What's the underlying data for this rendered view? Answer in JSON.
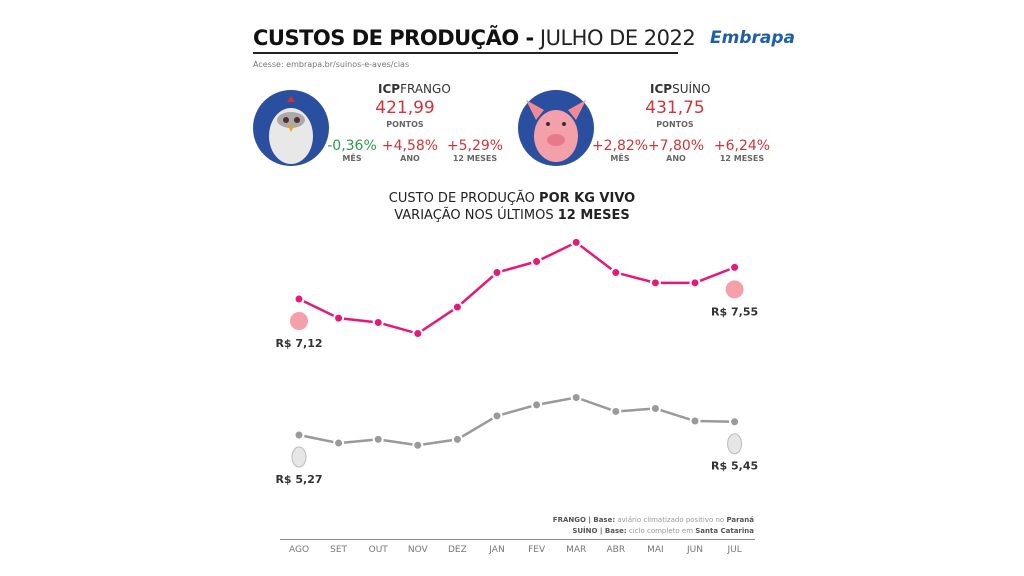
{
  "header": {
    "title_bold": "CUSTOS DE PRODUÇÃO -",
    "title_light": "JULHO DE 2022",
    "url": "Acesse: embrapa.br/suinos-e-aves/cias",
    "logo": "Embrapa"
  },
  "frango": {
    "name_bold": "ICP",
    "name": "FRANGO",
    "value": "421,99",
    "unit": "PONTOS",
    "vars": [
      {
        "value": "-0,36%",
        "label": "MÊS",
        "color": "#2e9a4a"
      },
      {
        "value": "+4,58%",
        "label": "ANO",
        "color": "#d0343a"
      },
      {
        "value": "+5,29%",
        "label": "12 MESES",
        "color": "#d0343a"
      }
    ]
  },
  "suino": {
    "name_bold": "ICP",
    "name": "SUÍNO",
    "value": "431,75",
    "unit": "PONTOS",
    "vars": [
      {
        "value": "+2,82%",
        "label": "MÊS",
        "color": "#d0343a"
      },
      {
        "value": "+7,80%",
        "label": "ANO",
        "color": "#d0343a"
      },
      {
        "value": "+6,24%",
        "label": "12 MESES",
        "color": "#d0343a"
      }
    ]
  },
  "chart_data": {
    "type": "line",
    "title_line1": "CUSTO DE PRODUÇÃO",
    "title_line1_bold": "POR KG VIVO",
    "title_line2": "VARIAÇÃO NOS ÚLTIMOS",
    "title_line2_bold": "12 MESES",
    "categories": [
      "AGO",
      "SET",
      "OUT",
      "NOV",
      "DEZ",
      "JAN",
      "FEV",
      "MAR",
      "ABR",
      "MAI",
      "JUN",
      "JUL"
    ],
    "series": [
      {
        "icon": "pig",
        "color": "#e6197a",
        "values": [
          7.12,
          6.86,
          6.8,
          6.65,
          7.01,
          7.48,
          7.63,
          7.89,
          7.48,
          7.34,
          7.34,
          7.55
        ],
        "start_label": "R$ 7,12",
        "end_label": "R$ 7,55"
      },
      {
        "icon": "chicken",
        "color": "#9a9a9a",
        "values": [
          5.27,
          5.16,
          5.21,
          5.13,
          5.21,
          5.53,
          5.68,
          5.78,
          5.59,
          5.63,
          5.46,
          5.45
        ],
        "start_label": "R$ 5,27",
        "end_label": "R$ 5,45"
      }
    ],
    "grid": false
  },
  "footnotes": [
    {
      "bold1": "FRANGO | Base:",
      "text": "aviário climatizado positivo no",
      "bold2": "Paraná"
    },
    {
      "bold1": "SUÍNO | Base:",
      "text": "ciclo completo em",
      "bold2": "Santa Catarina"
    }
  ]
}
